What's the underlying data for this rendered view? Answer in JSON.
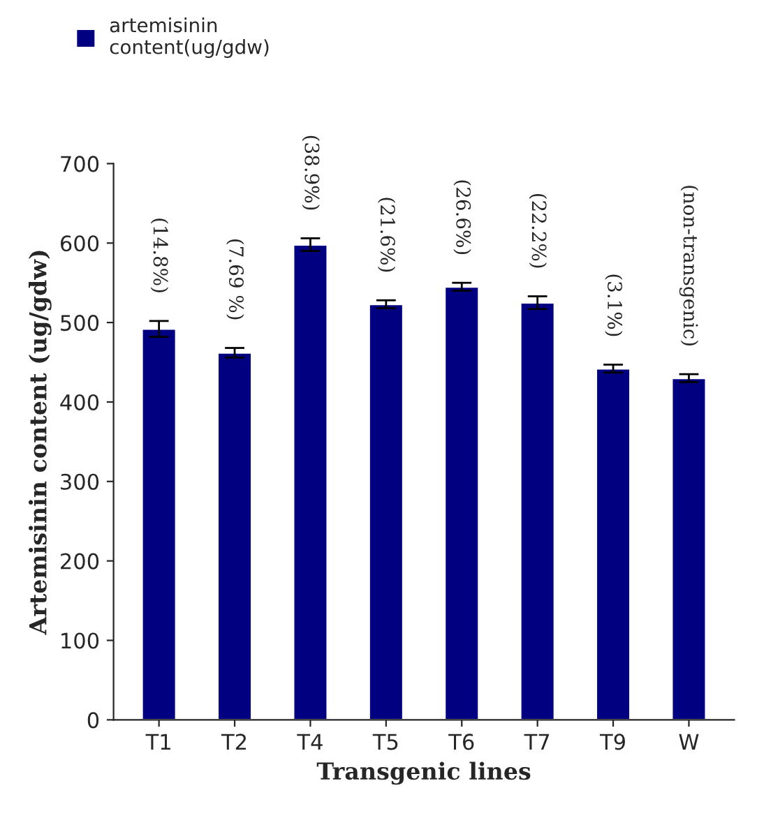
{
  "chart_data": {
    "type": "bar",
    "xlabel": "Transgenic lines",
    "ylabel": "Artemisinin content (ug/gdw)",
    "categories": [
      "T1",
      "T2",
      "T4",
      "T5",
      "T6",
      "T7",
      "T9",
      "W"
    ],
    "series": [
      {
        "name": "artemisinin\ncontent(ug/gdw)",
        "color": "#000080",
        "values": [
          492,
          462,
          598,
          523,
          545,
          525,
          442,
          430
        ],
        "errors": [
          10,
          6,
          8,
          5,
          5,
          8,
          5,
          5
        ]
      }
    ],
    "annotations": [
      "(14.8%)",
      "(7.69 %)",
      "(38.9%)",
      "(21.6%)",
      "(26.6%)",
      "(22.2%)",
      "(3.1%)",
      "(non-transgenic)"
    ],
    "ylim": [
      0,
      700
    ],
    "yticks": [
      0,
      100,
      200,
      300,
      400,
      500,
      600,
      700
    ],
    "grid": false,
    "legend": "top left"
  }
}
